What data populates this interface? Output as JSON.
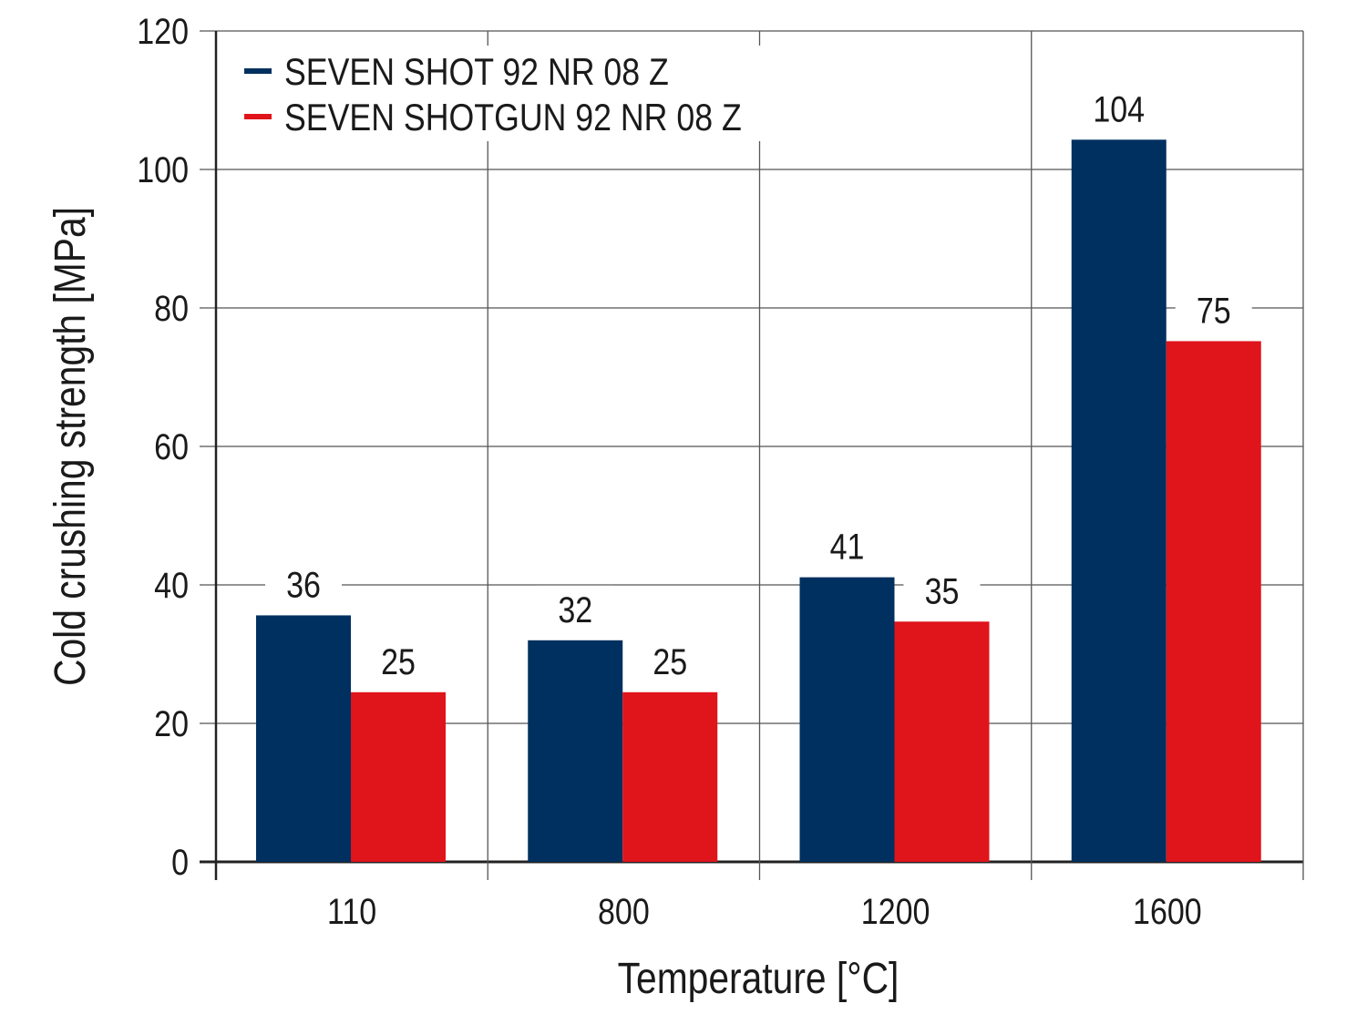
{
  "chart_data": {
    "type": "bar",
    "title": "",
    "xlabel": "Temperature [°C]",
    "ylabel": "Cold crushing strength [MPa]",
    "categories": [
      "110",
      "800",
      "1200",
      "1600"
    ],
    "ylim": [
      0,
      120
    ],
    "yticks": [
      0,
      20,
      40,
      60,
      80,
      100,
      120
    ],
    "grid": true,
    "legend_position": "top-left",
    "series": [
      {
        "name": "SEVEN SHOT 92 NR 08 Z",
        "color": "#00305f",
        "values": [
          35.6,
          32,
          41.1,
          104.3
        ],
        "labels": [
          "36",
          "32",
          "41",
          "104"
        ]
      },
      {
        "name": "SEVEN SHOTGUN 92 NR 08 Z",
        "color": "#e0141b",
        "values": [
          24.5,
          24.5,
          34.7,
          75.2
        ],
        "labels": [
          "25",
          "25",
          "35",
          "75"
        ]
      }
    ]
  }
}
